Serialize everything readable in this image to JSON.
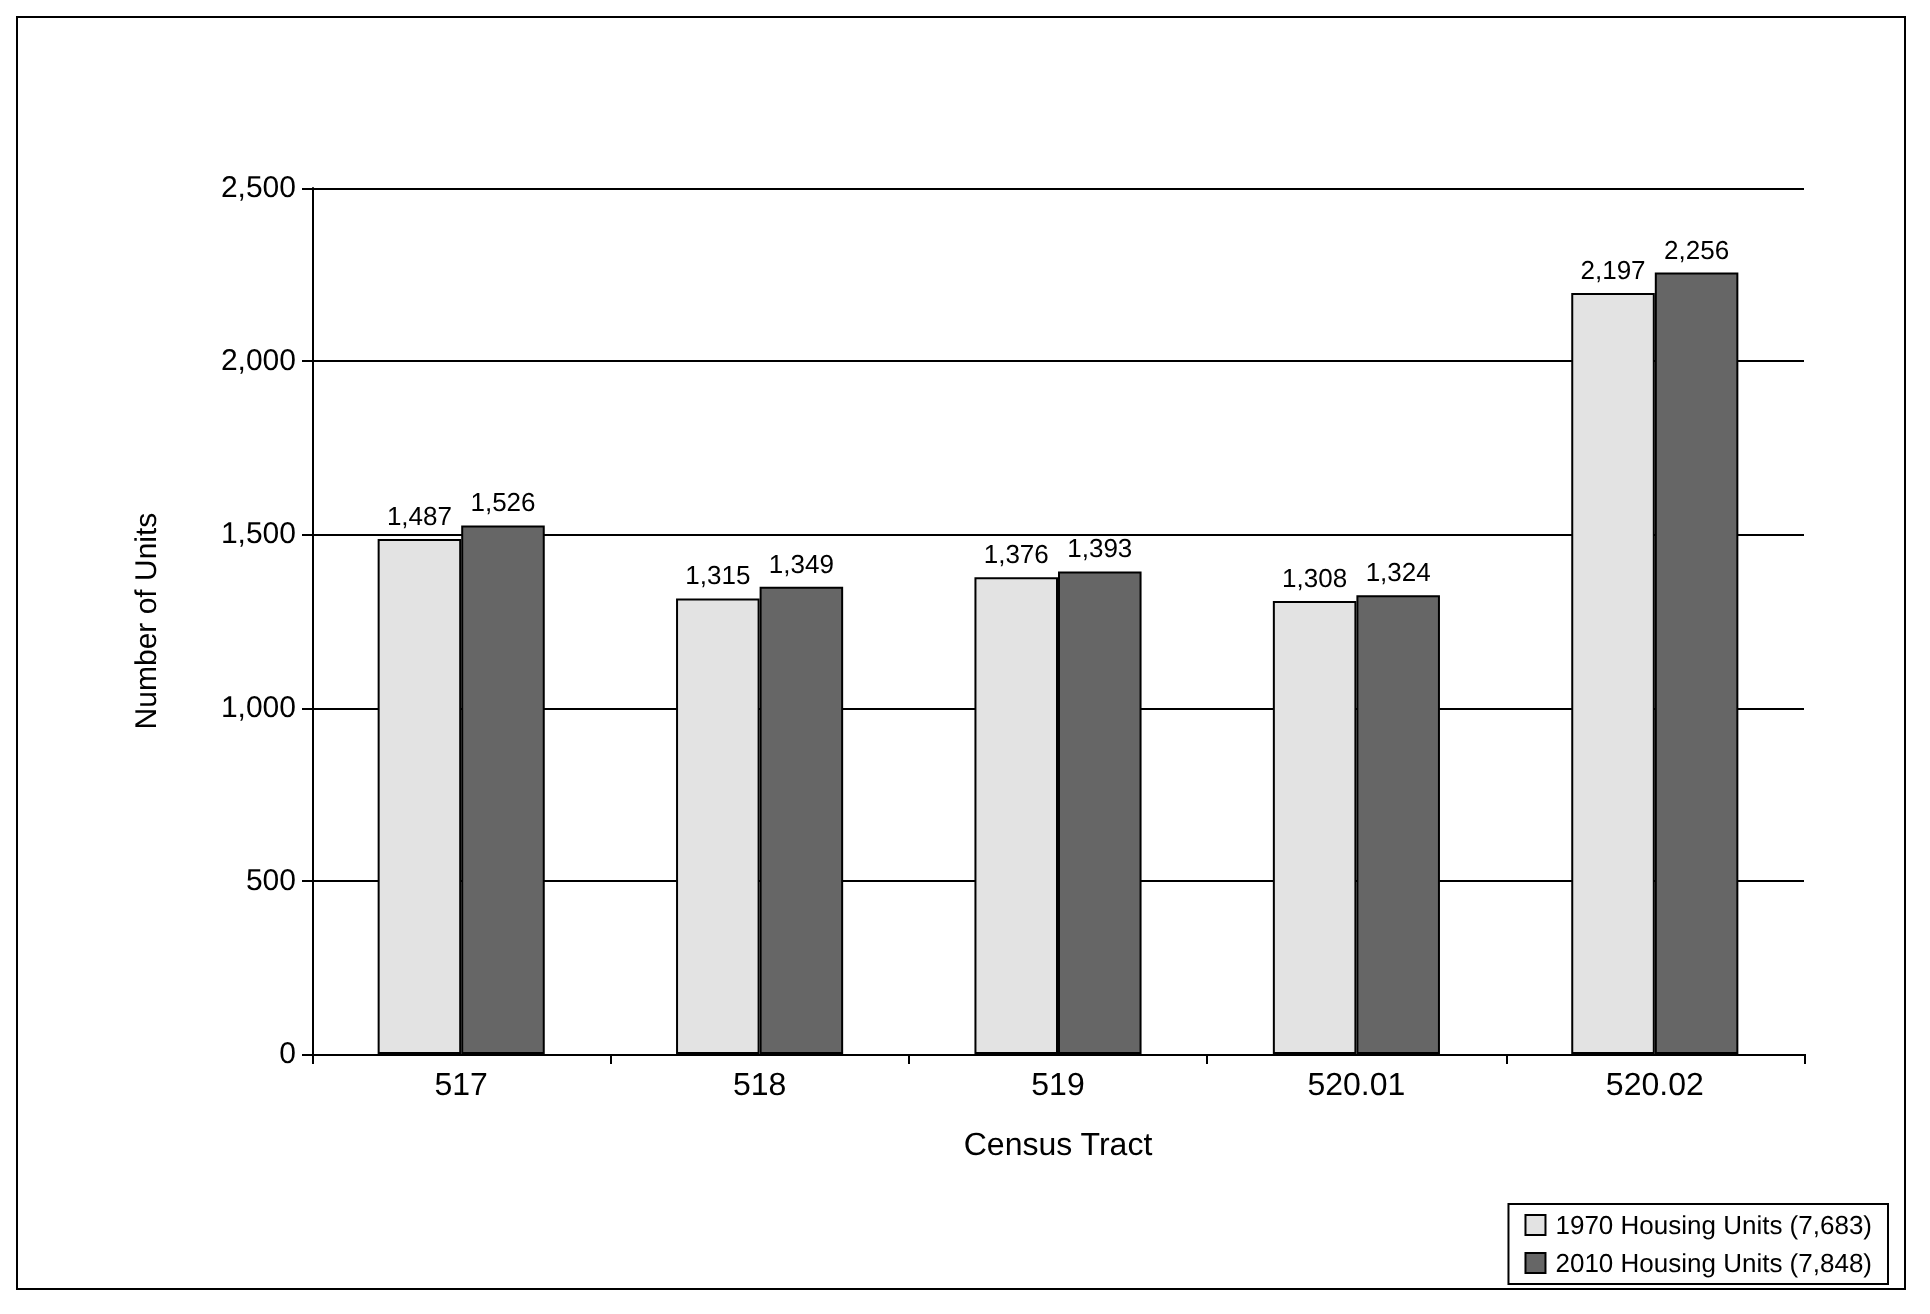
{
  "chart_data": {
    "type": "bar",
    "xlabel": "Census Tract",
    "ylabel": "Number of Units",
    "categories": [
      "517",
      "518",
      "519",
      "520.01",
      "520.02"
    ],
    "series": [
      {
        "name": "1970 Housing Units (7,683)",
        "color": "#e3e3e3",
        "values": [
          1487,
          1315,
          1376,
          1308,
          2197
        ],
        "value_labels": [
          "1,487",
          "1,315",
          "1,376",
          "1,308",
          "2,197"
        ]
      },
      {
        "name": "2010 Housing Units (7,848)",
        "color": "#666666",
        "values": [
          1526,
          1349,
          1393,
          1324,
          2256
        ],
        "value_labels": [
          "1,526",
          "1,349",
          "1,393",
          "1,324",
          "2,256"
        ]
      }
    ],
    "ylim": [
      0,
      2500
    ],
    "yticks": [
      0,
      500,
      {
        "value": 1000,
        "label": "1,000"
      },
      {
        "value": 1500,
        "label": "1,500"
      },
      {
        "value": 2000,
        "label": "2,000"
      },
      {
        "value": 2500,
        "label": "2,500"
      }
    ],
    "grid": "y",
    "legend": "bottom right"
  }
}
